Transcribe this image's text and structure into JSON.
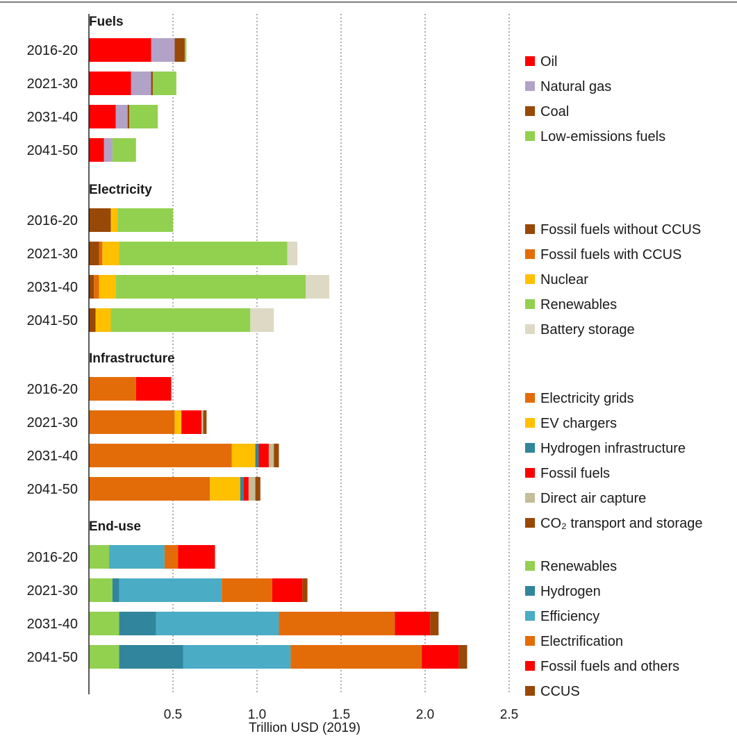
{
  "chart_data": {
    "type": "bar",
    "orientation": "horizontal",
    "stacked": true,
    "xlabel": "Trillion USD (2019)",
    "x_ticks": [
      "0.5",
      "1.0",
      "1.5",
      "2.0",
      "2.5"
    ],
    "xlim": [
      0,
      2.5
    ],
    "grid": "vertical dotted",
    "legend_position": "right",
    "panels": [
      {
        "title": "Fuels",
        "categories": [
          "2016-20",
          "2021-30",
          "2031-40",
          "2041-50"
        ],
        "series": [
          {
            "name": "Oil",
            "color": "#ff0000",
            "values": [
              0.37,
              0.25,
              0.16,
              0.09
            ]
          },
          {
            "name": "Natural gas",
            "color": "#b3a2c7",
            "values": [
              0.14,
              0.12,
              0.07,
              0.05
            ]
          },
          {
            "name": "Coal",
            "color": "#984807",
            "values": [
              0.06,
              0.01,
              0.01,
              0.0
            ]
          },
          {
            "name": "Low-emissions fuels",
            "color": "#92d050",
            "values": [
              0.01,
              0.14,
              0.17,
              0.14
            ]
          }
        ]
      },
      {
        "title": "Electricity",
        "categories": [
          "2016-20",
          "2021-30",
          "2031-40",
          "2041-50"
        ],
        "series": [
          {
            "name": "Fossil fuels without CCUS",
            "color": "#984807",
            "values": [
              0.13,
              0.06,
              0.03,
              0.04
            ]
          },
          {
            "name": "Fossil fuels with CCUS",
            "color": "#e36c09",
            "values": [
              0.0,
              0.02,
              0.03,
              0.0
            ]
          },
          {
            "name": "Nuclear",
            "color": "#ffc000",
            "values": [
              0.04,
              0.1,
              0.1,
              0.09
            ]
          },
          {
            "name": "Renewables",
            "color": "#92d050",
            "values": [
              0.33,
              1.0,
              1.13,
              0.83
            ]
          },
          {
            "name": "Battery storage",
            "color": "#ddd9c4",
            "values": [
              0.0,
              0.06,
              0.14,
              0.14
            ]
          }
        ]
      },
      {
        "title": "Infrastructure",
        "categories": [
          "2016-20",
          "2021-30",
          "2031-40",
          "2041-50"
        ],
        "series": [
          {
            "name": "Electricity grids",
            "color": "#e36c09",
            "values": [
              0.28,
              0.51,
              0.85,
              0.72
            ]
          },
          {
            "name": "EV chargers",
            "color": "#ffc000",
            "values": [
              0.0,
              0.04,
              0.14,
              0.18
            ]
          },
          {
            "name": "Hydrogen infrastructure",
            "color": "#31859c",
            "values": [
              0.0,
              0.0,
              0.02,
              0.02
            ]
          },
          {
            "name": "Fossil fuels",
            "color": "#ff0000",
            "values": [
              0.21,
              0.12,
              0.06,
              0.03
            ]
          },
          {
            "name": "Direct air capture",
            "color": "#c4bd97",
            "values": [
              0.0,
              0.01,
              0.03,
              0.04
            ]
          },
          {
            "name": "CO₂ transport and storage",
            "color": "#984807",
            "values": [
              0.0,
              0.02,
              0.03,
              0.03
            ]
          }
        ]
      },
      {
        "title": "End-use",
        "categories": [
          "2016-20",
          "2021-30",
          "2031-40",
          "2041-50"
        ],
        "series": [
          {
            "name": "Renewables",
            "color": "#92d050",
            "values": [
              0.12,
              0.14,
              0.18,
              0.18
            ]
          },
          {
            "name": "Hydrogen",
            "color": "#31859c",
            "values": [
              0.0,
              0.04,
              0.22,
              0.38
            ]
          },
          {
            "name": "Efficiency",
            "color": "#4bacc6",
            "values": [
              0.33,
              0.61,
              0.73,
              0.64
            ]
          },
          {
            "name": "Electrification",
            "color": "#e36c09",
            "values": [
              0.08,
              0.3,
              0.69,
              0.78
            ]
          },
          {
            "name": "Fossil fuels and others",
            "color": "#ff0000",
            "values": [
              0.22,
              0.18,
              0.21,
              0.22
            ]
          },
          {
            "name": "CCUS",
            "color": "#984807",
            "values": [
              0.0,
              0.03,
              0.05,
              0.05
            ]
          }
        ]
      }
    ]
  }
}
